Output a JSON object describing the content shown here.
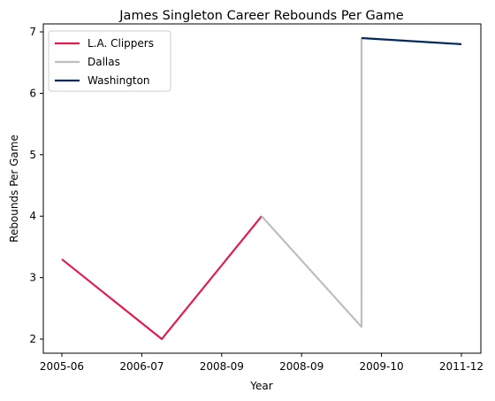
{
  "chart_data": {
    "type": "line",
    "title": "James Singleton  Career Rebounds Per Game",
    "xlabel": "Year",
    "ylabel": "Rebounds Per Game",
    "categories": [
      "2005-06",
      "2006-07",
      "2008-09",
      "2008-09",
      "2009-10",
      "2011-12"
    ],
    "ylim": [
      1.77,
      7.13
    ],
    "yticks": [
      2,
      3,
      4,
      5,
      6,
      7
    ],
    "grid": false,
    "legend_position": "top-left",
    "series": [
      {
        "name": "L.A. Clippers",
        "color": "#e31c4f",
        "points": [
          [
            0,
            3.3
          ],
          [
            1,
            2.0
          ],
          [
            2,
            4.0
          ]
        ]
      },
      {
        "name": "Dallas",
        "color": "#bebebe",
        "points": [
          [
            2,
            4.0
          ],
          [
            3,
            2.2
          ],
          [
            3,
            6.9
          ]
        ]
      },
      {
        "name": "Washington",
        "color": "#002b5c",
        "points": [
          [
            3,
            6.9
          ],
          [
            4,
            6.8
          ]
        ]
      }
    ]
  }
}
